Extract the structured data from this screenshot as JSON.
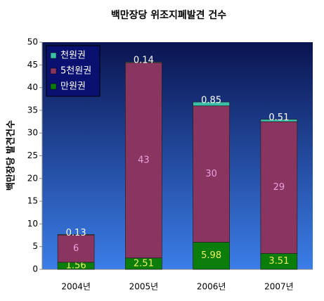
{
  "chart_data": {
    "type": "stacked_bar",
    "title": "백만장당 위조지폐발견 건수",
    "y_label": "백만장당 발견건수",
    "categories": [
      "2004년",
      "2005년",
      "2006년",
      "2007년"
    ],
    "series": [
      {
        "name": "만원권",
        "color": "#0b7d0b",
        "label_color": "#f0f060",
        "values": [
          1.56,
          2.51,
          5.98,
          3.51
        ]
      },
      {
        "name": "5천원권",
        "color": "#8a3460",
        "label_color": "#e8a0e0",
        "values": [
          6,
          43,
          30,
          29
        ]
      },
      {
        "name": "천원권",
        "color": "#3cbfa8",
        "label_color": "#ffffff",
        "values": [
          0.13,
          0.14,
          0.85,
          0.51
        ]
      }
    ],
    "ylim": [
      0,
      50
    ],
    "yticks": [
      0,
      5,
      10,
      15,
      20,
      25,
      30,
      35,
      40,
      45,
      50
    ],
    "legend": "top-left"
  }
}
